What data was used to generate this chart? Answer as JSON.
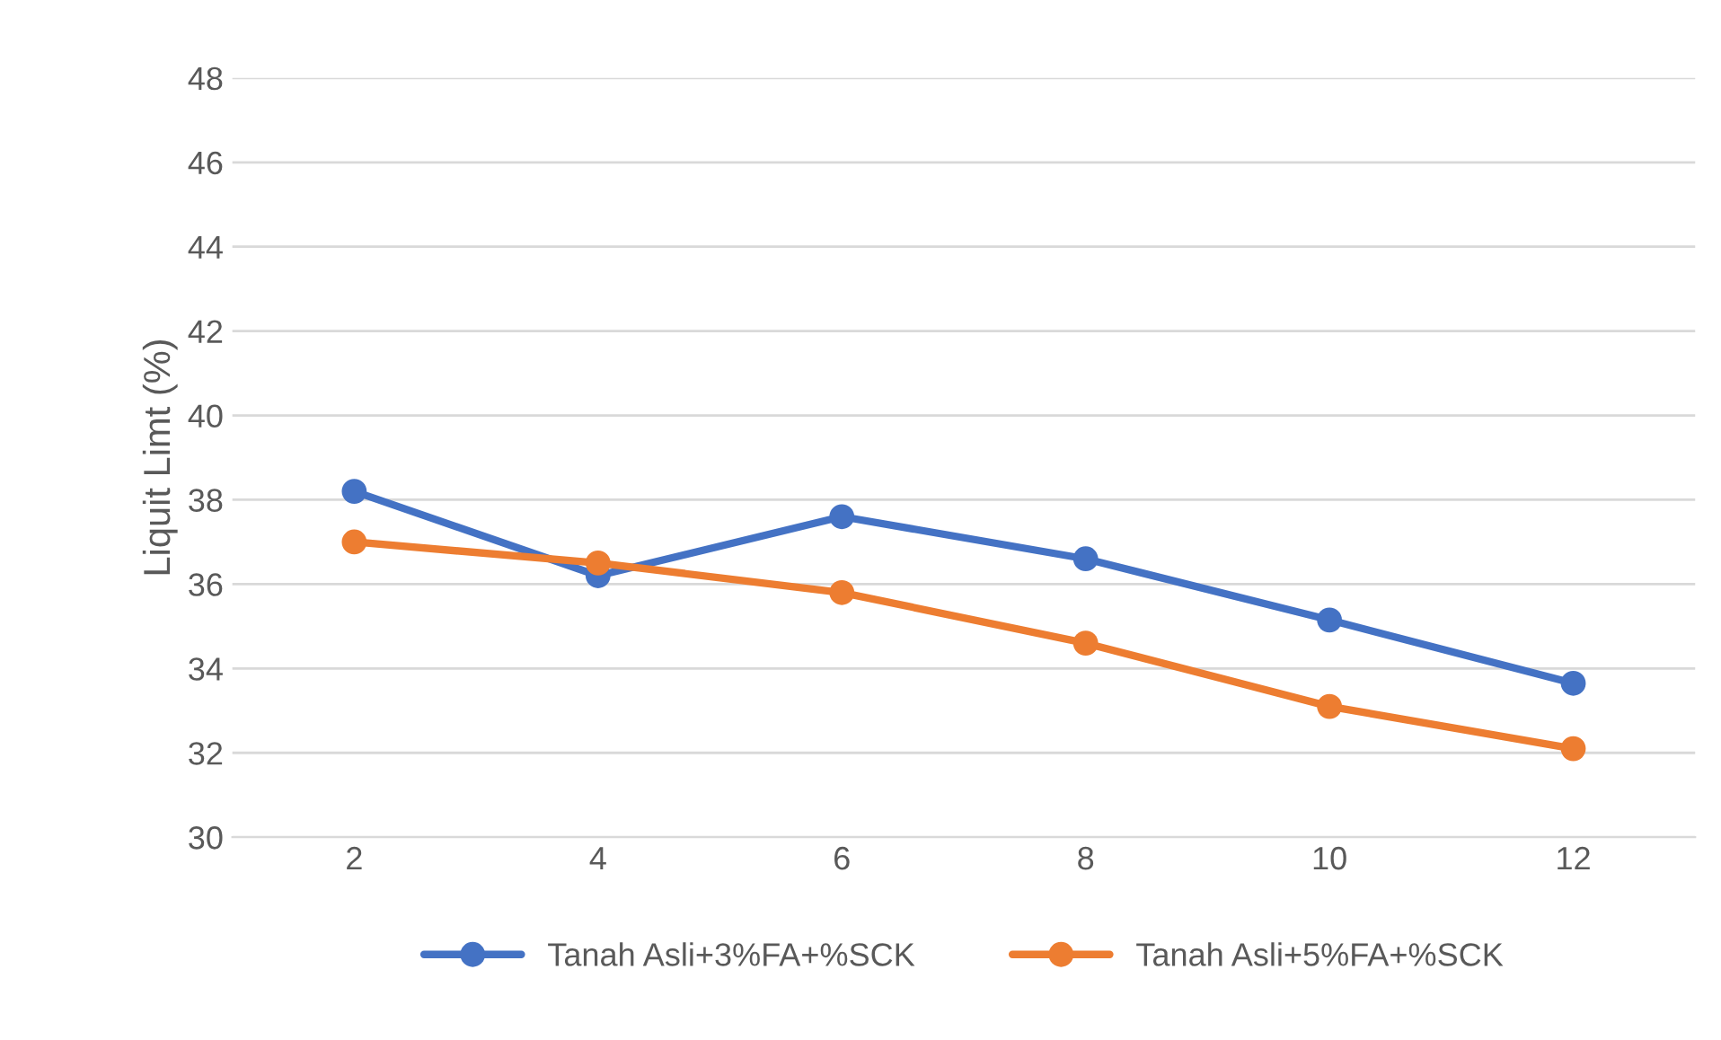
{
  "chart_data": {
    "type": "line",
    "ylabel": "Liquit Limt (%)",
    "categories": [
      "2",
      "4",
      "6",
      "8",
      "10",
      "12"
    ],
    "series": [
      {
        "name": "Tanah Asli+3%FA+%SCK",
        "color": "#4472c4",
        "values": [
          38.2,
          36.2,
          37.6,
          36.6,
          35.15,
          33.65
        ]
      },
      {
        "name": "Tanah Asli+5%FA+%SCK",
        "color": "#ed7d31",
        "values": [
          37.0,
          36.5,
          35.8,
          34.6,
          33.1,
          32.1
        ]
      }
    ],
    "ylim": [
      30,
      48
    ],
    "yticks": [
      30,
      32,
      34,
      36,
      38,
      40,
      42,
      44,
      46,
      48
    ],
    "grid": "y",
    "legend": "bottom",
    "marker": "circle",
    "line_style": "solid"
  }
}
